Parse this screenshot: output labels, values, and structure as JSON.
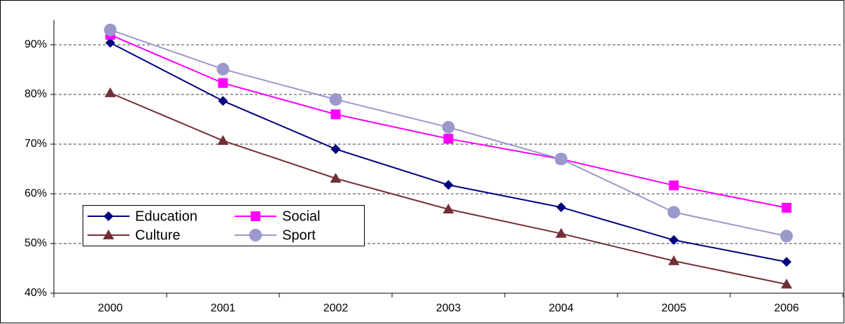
{
  "chart_data": {
    "type": "line",
    "categories": [
      "2000",
      "2001",
      "2002",
      "2003",
      "2004",
      "2005",
      "2006"
    ],
    "series": [
      {
        "name": "Education",
        "color": "#000080",
        "marker": "diamond",
        "values": [
          90.4,
          78.7,
          69.0,
          61.8,
          57.3,
          50.7,
          46.3
        ]
      },
      {
        "name": "Social",
        "color": "#ff00ff",
        "marker": "square",
        "values": [
          92.0,
          82.3,
          76.0,
          71.1,
          67.0,
          61.7,
          57.2
        ]
      },
      {
        "name": "Culture",
        "color": "#722f37",
        "marker": "triangle",
        "values": [
          80.3,
          70.7,
          63.1,
          56.9,
          52.0,
          46.5,
          41.8
        ]
      },
      {
        "name": "Sport",
        "color": "#9999cc",
        "marker": "circle",
        "values": [
          93.0,
          85.1,
          79.0,
          73.4,
          67.0,
          56.3,
          51.5
        ]
      }
    ],
    "ylim": [
      40,
      95
    ],
    "yticks": [
      {
        "value": 40,
        "label": "40%"
      },
      {
        "value": 50,
        "label": "50%"
      },
      {
        "value": 60,
        "label": "60%"
      },
      {
        "value": 70,
        "label": "70%"
      },
      {
        "value": 80,
        "label": "80%"
      },
      {
        "value": 90,
        "label": "90%"
      }
    ],
    "grid": true
  }
}
